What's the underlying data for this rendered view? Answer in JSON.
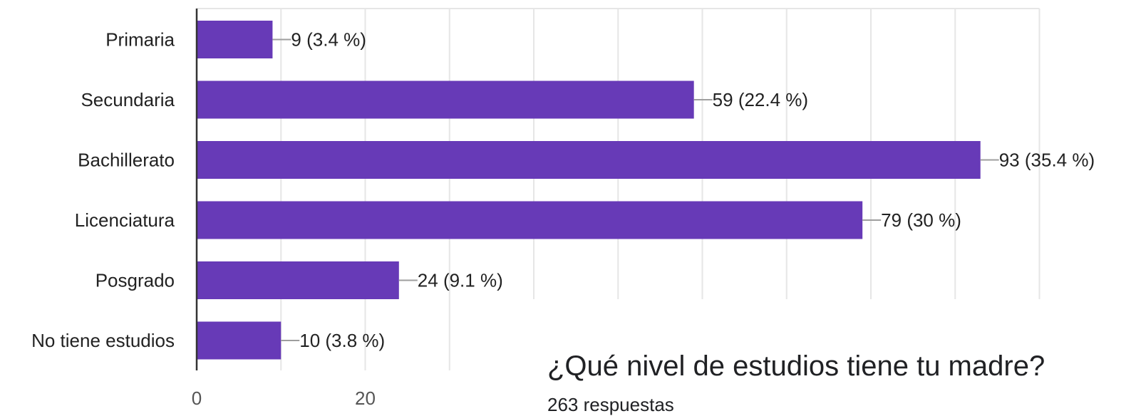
{
  "chart_data": {
    "type": "bar",
    "orientation": "horizontal",
    "categories": [
      "Primaria",
      "Secundaria",
      "Bachillerato",
      "Licenciatura",
      "Posgrado",
      "No tiene estudios"
    ],
    "values": [
      9,
      59,
      93,
      79,
      24,
      10
    ],
    "data_labels": [
      "9 (3.4 %)",
      "59 (22.4 %)",
      "93 (35.4 %)",
      "79 (30 %)",
      "24 (9.1 %)",
      "10 (3.8 %)"
    ],
    "x_ticks": [
      0,
      20
    ],
    "x_tick_labels": [
      "0",
      "20"
    ],
    "xlim": [
      0,
      100
    ],
    "grid": true,
    "bar_color": "#673ab7",
    "grid_color": "#e6e6e6",
    "title": "",
    "xlabel": "",
    "ylabel": ""
  },
  "form": {
    "question": "¿Qué nivel de estudios tiene tu madre?",
    "responses": "263 respuestas"
  }
}
